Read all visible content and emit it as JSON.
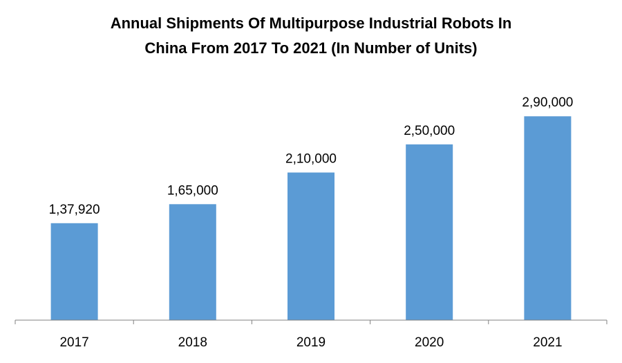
{
  "chart_data": {
    "type": "bar",
    "title_lines": [
      "Annual Shipments Of Multipurpose Industrial Robots In",
      "China From 2017 To 2021 (In Number of Units)"
    ],
    "categories": [
      "2017",
      "2018",
      "2019",
      "2020",
      "2021"
    ],
    "values": [
      137920,
      165000,
      210000,
      250000,
      290000
    ],
    "data_labels": [
      "1,37,920",
      "1,65,000",
      "2,10,000",
      "2,50,000",
      "2,90,000"
    ],
    "xlabel": "",
    "ylabel": "",
    "ylim": [
      0,
      300000
    ],
    "grid": false,
    "legend": "none",
    "bar_color": "#5b9bd5",
    "axis_color": "#808080"
  }
}
